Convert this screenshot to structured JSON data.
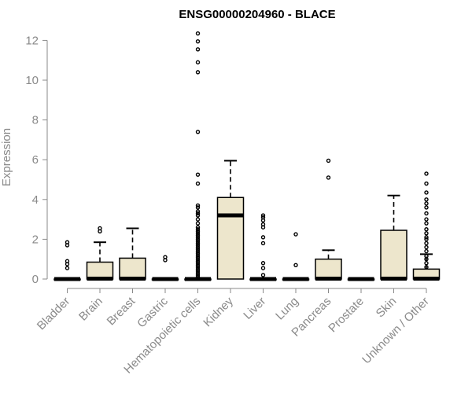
{
  "chart_data": {
    "type": "box",
    "title": "ENSG00000204960 - BLACE",
    "xlabel": "",
    "ylabel": "Expression",
    "ylim": [
      0,
      12.4
    ],
    "yticks": [
      0,
      2,
      4,
      6,
      8,
      10,
      12
    ],
    "box_fill": "#ede6cc",
    "categories": [
      "Bladder",
      "Brain",
      "Breast",
      "Gastric",
      "Hematopoietic cells",
      "Kidney",
      "Liver",
      "Lung",
      "Pancreas",
      "Prostate",
      "Skin",
      "Unknown / Other"
    ],
    "boxes": [
      {
        "category": "Bladder",
        "q1": 0,
        "median": 0,
        "q3": 0,
        "whisker_low": 0,
        "whisker_high": 0,
        "outliers": [
          0.55,
          0.75,
          0.9,
          1.7,
          1.85
        ]
      },
      {
        "category": "Brain",
        "q1": 0,
        "median": 0.02,
        "q3": 0.85,
        "whisker_low": 0,
        "whisker_high": 1.85,
        "outliers": [
          2.4,
          2.55
        ]
      },
      {
        "category": "Breast",
        "q1": 0,
        "median": 0.02,
        "q3": 1.05,
        "whisker_low": 0,
        "whisker_high": 2.55,
        "outliers": []
      },
      {
        "category": "Gastric",
        "q1": 0,
        "median": 0,
        "q3": 0,
        "whisker_low": 0,
        "whisker_high": 0,
        "outliers": [
          0.95,
          1.1
        ]
      },
      {
        "category": "Hematopoietic cells",
        "q1": 0,
        "median": 0,
        "q3": 0,
        "whisker_low": 0,
        "whisker_high": 0,
        "outliers": [
          0.1,
          0.2,
          0.3,
          0.4,
          0.5,
          0.6,
          0.7,
          0.8,
          0.9,
          1.0,
          1.1,
          1.2,
          1.3,
          1.4,
          1.5,
          1.6,
          1.7,
          1.8,
          1.9,
          2.0,
          2.1,
          2.2,
          2.3,
          2.4,
          2.5,
          2.6,
          2.8,
          3.0,
          3.2,
          3.3,
          3.4,
          3.6,
          3.7,
          4.8,
          5.25,
          7.4,
          10.4,
          10.9,
          11.55,
          11.95,
          12.35
        ]
      },
      {
        "category": "Kidney",
        "q1": 0,
        "median": 3.2,
        "q3": 4.1,
        "whisker_low": 0,
        "whisker_high": 5.95,
        "outliers": []
      },
      {
        "category": "Liver",
        "q1": 0,
        "median": 0,
        "q3": 0,
        "whisker_low": 0,
        "whisker_high": 0,
        "outliers": [
          0.2,
          0.55,
          0.8,
          1.8,
          2.1,
          2.6,
          2.75,
          2.95,
          3.1,
          3.2
        ]
      },
      {
        "category": "Lung",
        "q1": 0,
        "median": 0,
        "q3": 0,
        "whisker_low": 0,
        "whisker_high": 0,
        "outliers": [
          0.7,
          2.25
        ]
      },
      {
        "category": "Pancreas",
        "q1": 0,
        "median": 0.02,
        "q3": 1.0,
        "whisker_low": 0,
        "whisker_high": 1.45,
        "outliers": [
          5.1,
          5.95
        ]
      },
      {
        "category": "Prostate",
        "q1": 0,
        "median": 0,
        "q3": 0,
        "whisker_low": 0,
        "whisker_high": 0,
        "outliers": []
      },
      {
        "category": "Skin",
        "q1": 0,
        "median": 0.02,
        "q3": 2.45,
        "whisker_low": 0,
        "whisker_high": 4.2,
        "outliers": []
      },
      {
        "category": "Unknown / Other",
        "q1": 0,
        "median": 0.02,
        "q3": 0.5,
        "whisker_low": 0,
        "whisker_high": 1.25,
        "outliers": [
          0.6,
          0.8,
          1.0,
          1.15,
          1.4,
          1.6,
          1.8,
          2.0,
          2.1,
          2.3,
          2.5,
          2.8,
          3.0,
          3.3,
          3.6,
          3.8,
          4.0,
          4.35,
          4.8,
          5.3
        ]
      }
    ]
  }
}
